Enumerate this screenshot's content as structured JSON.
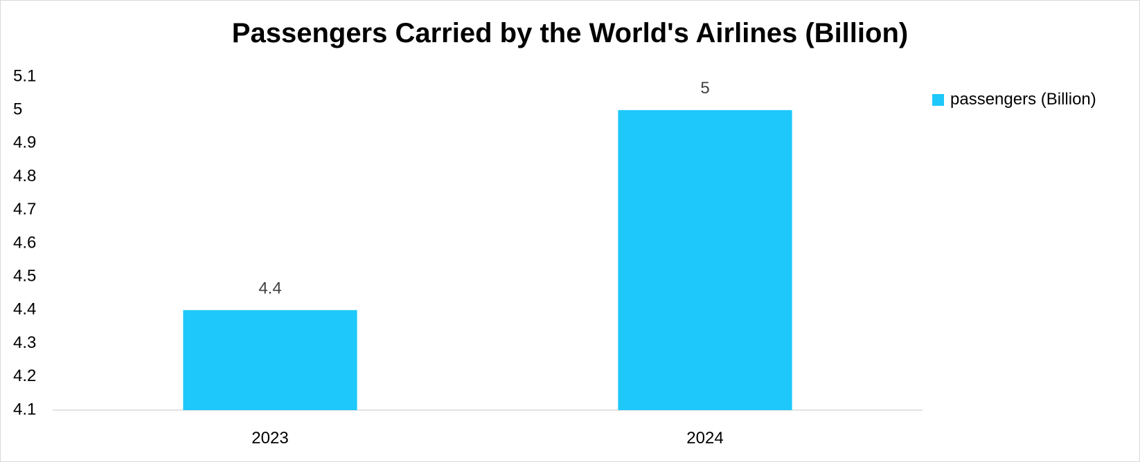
{
  "chart_data": {
    "type": "bar",
    "title": "Passengers Carried by the World's Airlines (Billion)",
    "categories": [
      "2023",
      "2024"
    ],
    "series": [
      {
        "name": "passengers (Billion)",
        "values": [
          4.4,
          5
        ],
        "labels": [
          "4.4",
          "5"
        ]
      }
    ],
    "ylim": [
      4.1,
      5.1
    ],
    "yticks": [
      4.1,
      4.2,
      4.3,
      4.4,
      4.5,
      4.6,
      4.7,
      4.8,
      4.9,
      5,
      5.1
    ],
    "ytick_labels": [
      "4.1",
      "4.2",
      "4.3",
      "4.4",
      "4.5",
      "4.6",
      "4.7",
      "4.8",
      "4.9",
      "5",
      "5.1"
    ],
    "xlabel": "",
    "ylabel": "",
    "grid": false,
    "legend_position": "right"
  },
  "colors": {
    "bar": "#1EC8FA",
    "axis": "#d9d9d9"
  }
}
